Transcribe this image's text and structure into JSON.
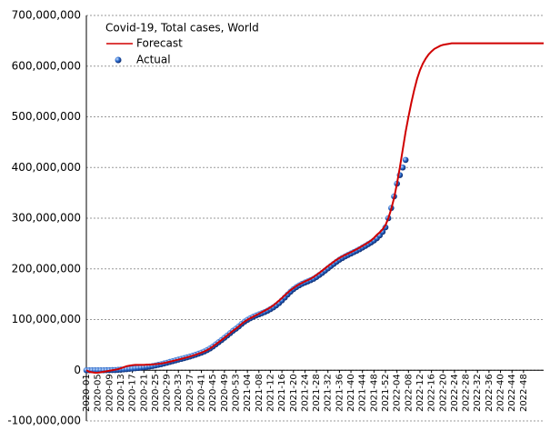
{
  "chart_data": {
    "type": "line",
    "title": "Covid-19, Total cases, World",
    "categories": [
      "2020-01",
      null,
      null,
      null,
      "2020-05",
      null,
      null,
      null,
      "2020-09",
      null,
      null,
      null,
      "2020-13",
      null,
      null,
      null,
      "2020-17",
      null,
      null,
      null,
      "2020-21",
      null,
      null,
      null,
      "2020-25",
      null,
      null,
      null,
      "2020-29",
      null,
      null,
      null,
      "2020-33",
      null,
      null,
      null,
      "2020-37",
      null,
      null,
      null,
      "2020-41",
      null,
      null,
      null,
      "2020-45",
      null,
      null,
      null,
      "2020-49",
      null,
      null,
      null,
      "2020-53",
      null,
      null,
      null,
      "2021-04",
      null,
      null,
      null,
      "2021-08",
      null,
      null,
      null,
      "2021-12",
      null,
      null,
      null,
      "2021-16",
      null,
      null,
      null,
      "2021-20",
      null,
      null,
      null,
      "2021-24",
      null,
      null,
      null,
      "2021-28",
      null,
      null,
      null,
      "2021-32",
      null,
      null,
      null,
      "2021-36",
      null,
      null,
      null,
      "2021-40",
      null,
      null,
      null,
      "2021-44",
      null,
      null,
      null,
      "2021-48",
      null,
      null,
      null,
      "2021-52",
      null,
      null,
      null,
      "2022-04",
      null,
      null,
      null,
      "2022-08",
      null,
      null,
      null,
      "2022-12",
      null,
      null,
      null,
      "2022-16",
      null,
      null,
      null,
      "2022-20",
      null,
      null,
      null,
      "2022-24",
      null,
      null,
      null,
      "2022-28",
      null,
      null,
      null,
      "2022-32",
      null,
      null,
      null,
      "2022-36",
      null,
      null,
      null,
      "2022-40",
      null,
      null,
      null,
      "2022-44",
      null,
      null,
      null,
      "2022-48",
      null,
      null,
      null,
      null,
      null,
      null,
      null
    ],
    "series": [
      {
        "name": "Forecast",
        "type": "line",
        "color": "#d00000",
        "values": [
          0,
          -3000000.0,
          -4000000.0,
          -5000000.0,
          -5000000.0,
          -4000000.0,
          -3000000.0,
          -2000000.0,
          -1000000.0,
          0,
          1000000.0,
          2000000.0,
          4000000.0,
          6000000.0,
          8000000.0,
          9000000.0,
          10000000.0,
          10500000.0,
          10500000.0,
          10500000.0,
          10500000.0,
          11000000.0,
          11000000.0,
          11500000.0,
          12000000.0,
          12500000.0,
          13300000.0,
          14300000.0,
          15500000.0,
          16800000.0,
          18200000.0,
          19600000.0,
          21000000.0,
          22400000.0,
          23900000.0,
          25400000.0,
          27000000.0,
          28800000.0,
          30600000.0,
          32600000.0,
          34700000.0,
          37000000.0,
          39800000.0,
          43000000.0,
          46800000.0,
          51000000.0,
          55300000.0,
          59600000.0,
          64000000.0,
          68500000.0,
          73200000.0,
          77900000.0,
          82000000.0,
          86500000.0,
          91500000.0,
          95800000.0,
          99500000.0,
          102600000.0,
          105500000.0,
          108500000.0,
          111500000.0,
          114500000.0,
          117500000.0,
          120600000.0,
          124000000.0,
          128000000.0,
          132500000.0,
          137500000.0,
          142500000.0,
          148000000.0,
          153000000.0,
          158000000.0,
          162000000.0,
          166000000.0,
          169500000.0,
          172500000.0,
          175300000.0,
          177800000.0,
          180500000.0,
          184000000.0,
          188000000.0,
          192000000.0,
          196500000.0,
          201000000.0,
          205500000.0,
          209800000.0,
          214000000.0,
          218000000.0,
          221500000.0,
          224600000.0,
          227500000.0,
          230300000.0,
          233000000.0,
          235800000.0,
          238800000.0,
          242000000.0,
          245300000.0,
          248700000.0,
          252200000.0,
          256000000.0,
          261000000.0,
          267000000.0,
          272000000.0,
          278000000.0,
          286000000.0,
          300000000.0,
          318000000.0,
          340000000.0,
          368000000.0,
          400000000.0,
          435000000.0,
          470000000.0,
          500000000.0,
          528000000.0,
          553000000.0,
          575000000.0,
          592000000.0,
          605000000.0,
          615000000.0,
          623000000.0,
          629000000.0,
          634000000.0,
          637000000.0,
          640000000.0,
          642000000.0,
          643000000.0,
          644000000.0,
          645000000.0,
          645000000.0,
          645000000.0,
          645000000.0,
          645000000.0,
          645000000.0,
          645000000.0,
          645000000.0,
          645000000.0,
          645000000.0,
          645000000.0,
          645000000.0,
          645000000.0,
          645000000.0,
          645000000.0,
          645000000.0,
          645000000.0,
          645000000.0,
          645000000.0,
          645000000.0,
          645000000.0,
          645000000.0,
          645000000.0,
          645000000.0,
          645000000.0,
          645000000.0,
          645000000.0,
          645000000.0,
          645000000.0,
          645000000.0,
          645000000.0,
          645000000.0,
          645000000.0
        ]
      },
      {
        "name": "Actual",
        "type": "scatter",
        "color": "#1f5fbf",
        "values": [
          0,
          0,
          0,
          0,
          0,
          0,
          0,
          100000.0,
          200000.0,
          300000.0,
          400000.0,
          700000.0,
          1200000.0,
          1700000.0,
          2200000.0,
          2800000.0,
          3300000.0,
          3900000.0,
          4500000.0,
          5100000.0,
          5800000.0,
          6600000.0,
          7400000.0,
          8300000.0,
          9400000.0,
          10600000.0,
          11900000.0,
          13300000.0,
          14800000.0,
          16400000.0,
          17900000.0,
          19400000.0,
          20900000.0,
          22400000.0,
          23900000.0,
          25400000.0,
          27000000.0,
          28800000.0,
          30600000.0,
          32600000.0,
          34700000.0,
          37000000.0,
          39800000.0,
          43000000.0,
          46800000.0,
          51000000.0,
          55300000.0,
          59600000.0,
          64000000.0,
          68500000.0,
          73200000.0,
          77900000.0,
          82000000.0,
          86500000.0,
          91500000.0,
          95800000.0,
          99500000.0,
          102600000.0,
          105500000.0,
          108000000.0,
          110300000.0,
          112500000.0,
          114800000.0,
          117500000.0,
          120600000.0,
          124000000.0,
          128000000.0,
          132500000.0,
          137800000.0,
          143500000.0,
          149500000.0,
          155000000.0,
          160000000.0,
          164000000.0,
          167500000.0,
          170500000.0,
          173000000.0,
          175300000.0,
          177800000.0,
          180500000.0,
          184000000.0,
          188000000.0,
          192000000.0,
          196500000.0,
          201000000.0,
          205500000.0,
          209800000.0,
          214000000.0,
          218000000.0,
          221500000.0,
          224600000.0,
          227500000.0,
          230300000.0,
          233000000.0,
          235800000.0,
          238800000.0,
          242000000.0,
          245300000.0,
          248700000.0,
          252200000.0,
          256000000.0,
          260500000.0,
          266000000.0,
          273000000.0,
          282000000.0,
          300000000.0,
          320000000.0,
          343000000.0,
          368000000.0,
          385000000.0,
          400000000.0,
          415000000.0
        ]
      }
    ],
    "ylim": [
      -100000000.0,
      700000000.0
    ],
    "yticks": [
      {
        "value": -100000000.0,
        "label": "-100,000,000"
      },
      0,
      {
        "value": 100000000.0,
        "label": "100,000,000"
      },
      {
        "value": 200000000.0,
        "label": "200,000,000"
      },
      {
        "value": 300000000.0,
        "label": "300,000,000"
      },
      {
        "value": 400000000.0,
        "label": "400,000,000"
      },
      {
        "value": 500000000.0,
        "label": "500,000,000"
      },
      {
        "value": 600000000.0,
        "label": "600,000,000"
      },
      {
        "value": 700000000.0,
        "label": "700,000,000"
      }
    ],
    "grid": true
  }
}
